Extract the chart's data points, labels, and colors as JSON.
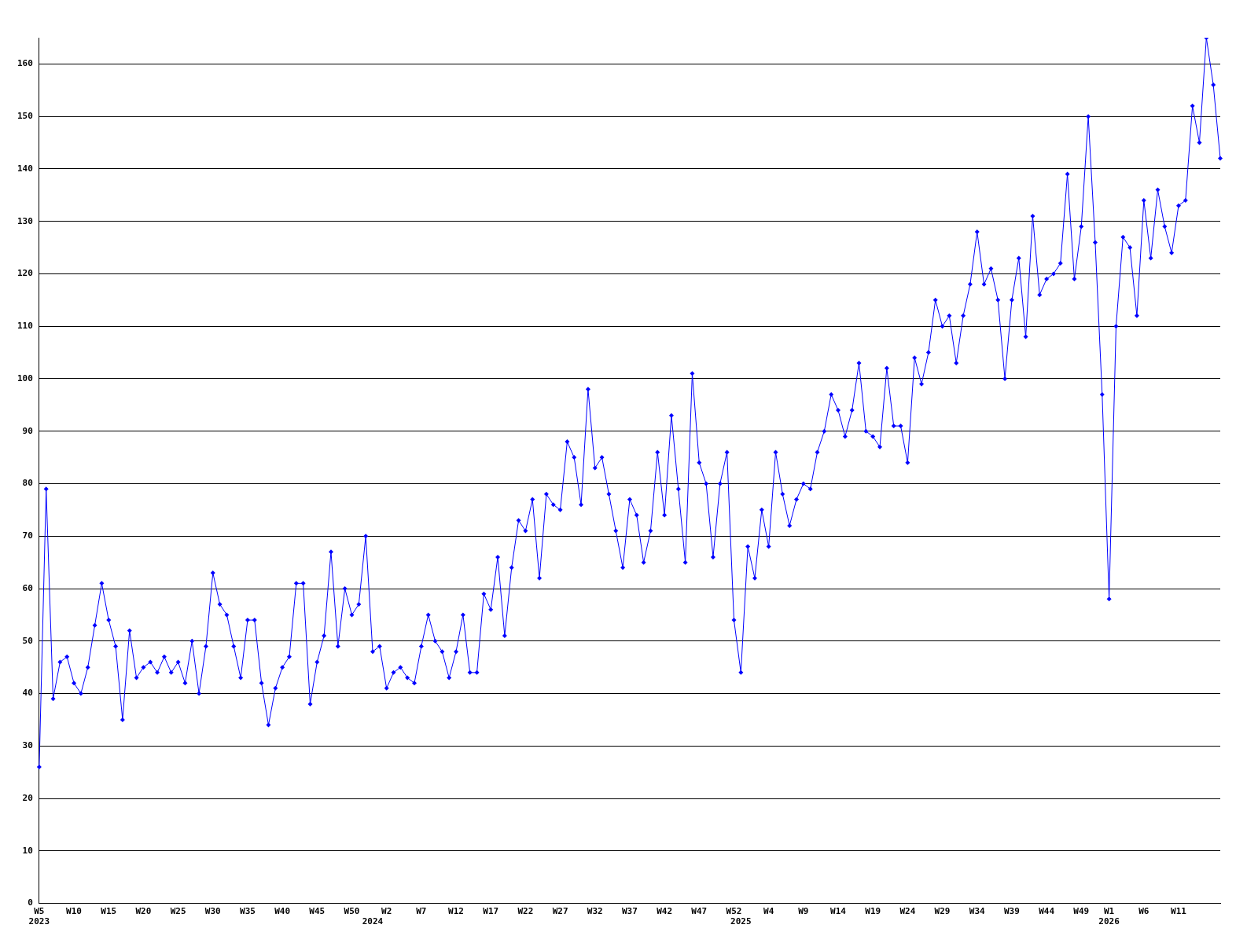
{
  "chart_data": {
    "type": "line",
    "categories": [
      "W5\n2023",
      null,
      null,
      null,
      null,
      "W10",
      null,
      null,
      null,
      null,
      "W15",
      null,
      null,
      null,
      null,
      "W20",
      null,
      null,
      null,
      null,
      "W25",
      null,
      null,
      null,
      null,
      "W30",
      null,
      null,
      null,
      null,
      "W35",
      null,
      null,
      null,
      null,
      "W40",
      null,
      null,
      null,
      null,
      "W45",
      null,
      null,
      null,
      null,
      "W50",
      null,
      null,
      "\n2024",
      null,
      "W2",
      null,
      null,
      null,
      null,
      "W7",
      null,
      null,
      null,
      null,
      "W12",
      null,
      null,
      null,
      null,
      "W17",
      null,
      null,
      null,
      null,
      "W22",
      null,
      null,
      null,
      null,
      "W27",
      null,
      null,
      null,
      null,
      "W32",
      null,
      null,
      null,
      null,
      "W37",
      null,
      null,
      null,
      null,
      "W42",
      null,
      null,
      null,
      null,
      "W47",
      null,
      null,
      null,
      null,
      "W52",
      "\n2025",
      null,
      null,
      null,
      "W4",
      null,
      null,
      null,
      null,
      "W9",
      null,
      null,
      null,
      null,
      "W14",
      null,
      null,
      null,
      null,
      "W19",
      null,
      null,
      null,
      null,
      "W24",
      null,
      null,
      null,
      null,
      "W29",
      null,
      null,
      null,
      null,
      "W34",
      null,
      null,
      null,
      null,
      "W39",
      null,
      null,
      null,
      null,
      "W44",
      null,
      null,
      null,
      null,
      "W49",
      null,
      null,
      null,
      "W1\n2026",
      null,
      null,
      null,
      null,
      "W6",
      null,
      null,
      null,
      null,
      "W11",
      null,
      null,
      null,
      null,
      null,
      null
    ],
    "series": [
      {
        "color": "#0000ff",
        "values": [
          26,
          79,
          39,
          46,
          47,
          42,
          40,
          45,
          53,
          61,
          54,
          49,
          35,
          52,
          43,
          45,
          46,
          44,
          47,
          44,
          46,
          42,
          50,
          40,
          49,
          63,
          57,
          55,
          49,
          43,
          54,
          54,
          42,
          34,
          41,
          45,
          47,
          61,
          61,
          38,
          46,
          51,
          67,
          49,
          60,
          55,
          57,
          70,
          48,
          49,
          41,
          44,
          45,
          43,
          42,
          49,
          55,
          50,
          48,
          43,
          48,
          55,
          44,
          44,
          59,
          56,
          66,
          51,
          64,
          73,
          71,
          77,
          62,
          78,
          76,
          75,
          88,
          85,
          76,
          98,
          83,
          85,
          78,
          71,
          64,
          77,
          74,
          65,
          71,
          86,
          74,
          93,
          79,
          65,
          101,
          84,
          80,
          66,
          80,
          86,
          54,
          44,
          68,
          62,
          75,
          68,
          86,
          78,
          72,
          77,
          80,
          79,
          86,
          90,
          97,
          94,
          89,
          94,
          103,
          90,
          89,
          87,
          102,
          91,
          91,
          84,
          104,
          99,
          105,
          115,
          110,
          112,
          103,
          112,
          118,
          128,
          118,
          121,
          115,
          100,
          115,
          123,
          108,
          131,
          116,
          119,
          120,
          122,
          139,
          119,
          129,
          150,
          126,
          97,
          58,
          110,
          127,
          125,
          112,
          134,
          123,
          136,
          129,
          124,
          133,
          134,
          152,
          145,
          165,
          156,
          142
        ]
      }
    ],
    "ylim": [
      0,
      165
    ],
    "yticks": [
      0,
      10,
      20,
      30,
      40,
      50,
      60,
      70,
      80,
      90,
      100,
      110,
      120,
      130,
      140,
      150,
      160
    ],
    "grid": "y",
    "legend": false,
    "marker": "diamond",
    "line_style": "solid"
  }
}
